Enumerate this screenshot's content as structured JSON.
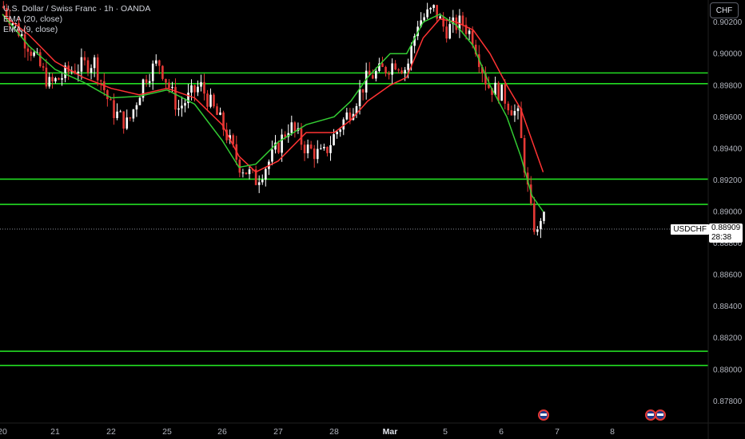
{
  "legend": {
    "title": "U.S. Dollar / Swiss Franc · 1h · OANDA",
    "ema20": "EMA (20, close)",
    "ema9": "EMA (9, close)"
  },
  "currency_button": "CHF",
  "price_tag": {
    "symbol": "USDCHF",
    "price": "0.88909",
    "countdown": "28:38"
  },
  "colors": {
    "background": "#000000",
    "candle_up": "#ffffff",
    "candle_down": "#e53935",
    "ema20": "#ff3333",
    "ema9": "#33cc33",
    "support_lines": "#22dd22"
  },
  "chart_data": {
    "type": "candlestick",
    "title": "U.S. Dollar / Swiss Franc · 1h · OANDA",
    "ylim": [
      0.8766,
      0.9034
    ],
    "y_ticks": [
      "0.90200",
      "0.90000",
      "0.89800",
      "0.89600",
      "0.89400",
      "0.89200",
      "0.89000",
      "0.88800",
      "0.88600",
      "0.88400",
      "0.88200",
      "0.88000",
      "0.87800"
    ],
    "x_ticks": [
      "20",
      "21",
      "22",
      "25",
      "26",
      "27",
      "28",
      "Mar",
      "5",
      "6",
      "7",
      "8"
    ],
    "horizontal_levels": [
      0.89878,
      0.8981,
      0.89205,
      0.89045,
      0.88115,
      0.88025
    ],
    "last_price": 0.88909,
    "ema_series": [
      {
        "name": "EMA (20, close)",
        "color": "#ff3333",
        "points": [
          [
            0,
            0.9025
          ],
          [
            0.5,
            0.9012
          ],
          [
            1.0,
            0.8995
          ],
          [
            1.5,
            0.8985
          ],
          [
            2.0,
            0.8978
          ],
          [
            2.5,
            0.8974
          ],
          [
            3.0,
            0.8978
          ],
          [
            3.5,
            0.8972
          ],
          [
            4.0,
            0.8955
          ],
          [
            4.3,
            0.8935
          ],
          [
            4.6,
            0.8925
          ],
          [
            5.0,
            0.8932
          ],
          [
            5.5,
            0.895
          ],
          [
            6.0,
            0.895
          ],
          [
            6.3,
            0.8958
          ],
          [
            6.6,
            0.897
          ],
          [
            7.0,
            0.898
          ],
          [
            7.3,
            0.8985
          ],
          [
            7.6,
            0.901
          ],
          [
            7.9,
            0.9022
          ],
          [
            8.2,
            0.902
          ],
          [
            8.5,
            0.9015
          ],
          [
            8.8,
            0.9
          ],
          [
            9.1,
            0.898
          ],
          [
            9.35,
            0.8965
          ],
          [
            9.55,
            0.8945
          ],
          [
            9.75,
            0.8925
          ]
        ]
      },
      {
        "name": "EMA (9, close)",
        "color": "#33cc33",
        "points": [
          [
            0,
            0.9025
          ],
          [
            0.5,
            0.9005
          ],
          [
            1.0,
            0.899
          ],
          [
            1.5,
            0.8982
          ],
          [
            2.0,
            0.8972
          ],
          [
            2.5,
            0.8973
          ],
          [
            3.0,
            0.8977
          ],
          [
            3.5,
            0.8968
          ],
          [
            4.0,
            0.8945
          ],
          [
            4.3,
            0.8928
          ],
          [
            4.6,
            0.893
          ],
          [
            5.0,
            0.8944
          ],
          [
            5.5,
            0.8955
          ],
          [
            6.0,
            0.896
          ],
          [
            6.3,
            0.897
          ],
          [
            6.6,
            0.8985
          ],
          [
            7.0,
            0.9
          ],
          [
            7.3,
            0.9
          ],
          [
            7.6,
            0.902
          ],
          [
            7.9,
            0.9025
          ],
          [
            8.2,
            0.9018
          ],
          [
            8.5,
            0.9005
          ],
          [
            8.8,
            0.898
          ],
          [
            9.1,
            0.896
          ],
          [
            9.35,
            0.8935
          ],
          [
            9.55,
            0.891
          ],
          [
            9.75,
            0.89
          ]
        ]
      }
    ],
    "close_path": [
      [
        0,
        0.903
      ],
      [
        0.5,
        0.9005
      ],
      [
        0.9,
        0.898
      ],
      [
        1.3,
        0.899
      ],
      [
        1.7,
        0.8995
      ],
      [
        2.0,
        0.8965
      ],
      [
        2.3,
        0.8955
      ],
      [
        2.6,
        0.8985
      ],
      [
        2.85,
        0.8995
      ],
      [
        3.2,
        0.8965
      ],
      [
        3.6,
        0.898
      ],
      [
        4.0,
        0.8955
      ],
      [
        4.3,
        0.893
      ],
      [
        4.6,
        0.892
      ],
      [
        4.9,
        0.8935
      ],
      [
        5.2,
        0.8955
      ],
      [
        5.5,
        0.894
      ],
      [
        5.8,
        0.8935
      ],
      [
        6.0,
        0.8948
      ],
      [
        6.3,
        0.8965
      ],
      [
        6.6,
        0.8985
      ],
      [
        6.9,
        0.899
      ],
      [
        7.1,
        0.8995
      ],
      [
        7.3,
        0.899
      ],
      [
        7.5,
        0.902
      ],
      [
        7.8,
        0.9028
      ],
      [
        8.0,
        0.9015
      ],
      [
        8.3,
        0.902
      ],
      [
        8.5,
        0.901
      ],
      [
        8.75,
        0.898
      ],
      [
        9.0,
        0.8975
      ],
      [
        9.3,
        0.896
      ],
      [
        9.45,
        0.892
      ],
      [
        9.55,
        0.8895
      ],
      [
        9.65,
        0.8885
      ],
      [
        9.72,
        0.89
      ],
      [
        9.8,
        0.889
      ]
    ]
  }
}
